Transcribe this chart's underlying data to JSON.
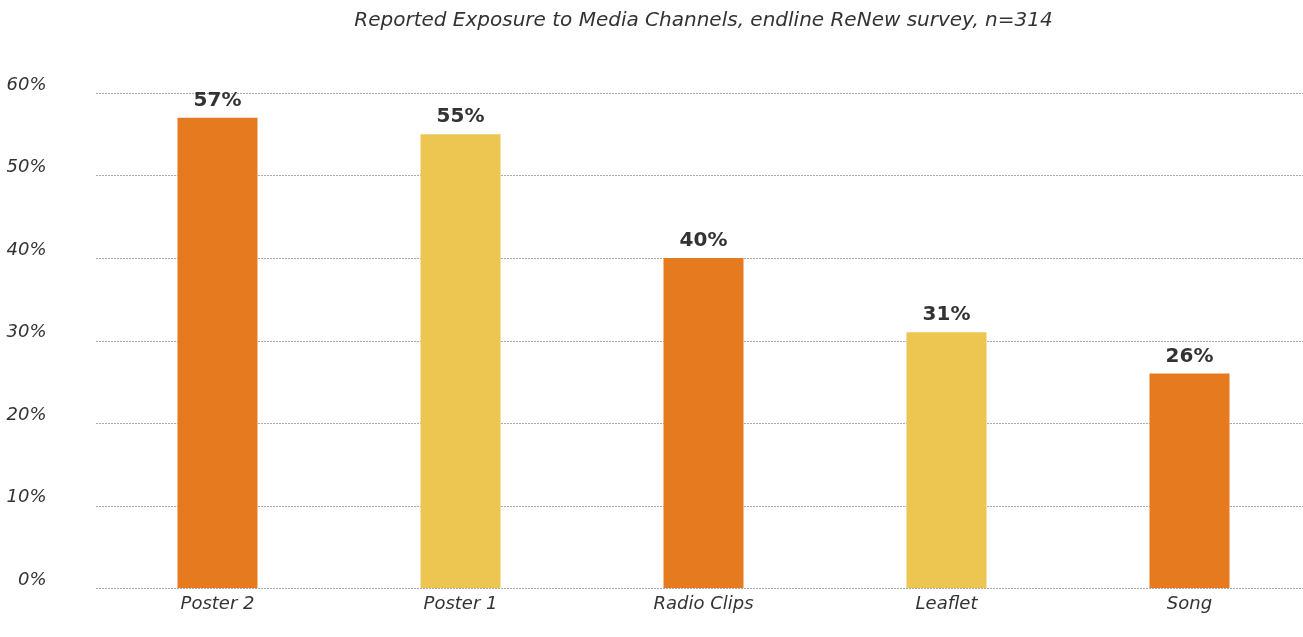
{
  "chart_data": {
    "type": "bar",
    "title": "Reported Exposure to Media Channels, endline ReNew survey, n=314",
    "categories": [
      "Poster 2",
      "Poster 1",
      "Radio Clips",
      "Leaflet",
      "Song"
    ],
    "values": [
      57,
      55,
      40,
      31,
      26
    ],
    "value_labels": [
      "57%",
      "55%",
      "40%",
      "31%",
      "26%"
    ],
    "colors": [
      "#e57a1e",
      "#ecc651",
      "#e57a1e",
      "#ecc651",
      "#e57a1e"
    ],
    "ylim": [
      0,
      60
    ],
    "yticks": [
      {
        "value": 0,
        "label": "0%"
      },
      {
        "value": 10,
        "label": "10%"
      },
      {
        "value": 20,
        "label": "20%"
      },
      {
        "value": 30,
        "label": "30%"
      },
      {
        "value": 40,
        "label": "40%"
      },
      {
        "value": 50,
        "label": "50%"
      },
      {
        "value": 60,
        "label": "60%"
      }
    ],
    "grid": "y",
    "legend": false
  }
}
